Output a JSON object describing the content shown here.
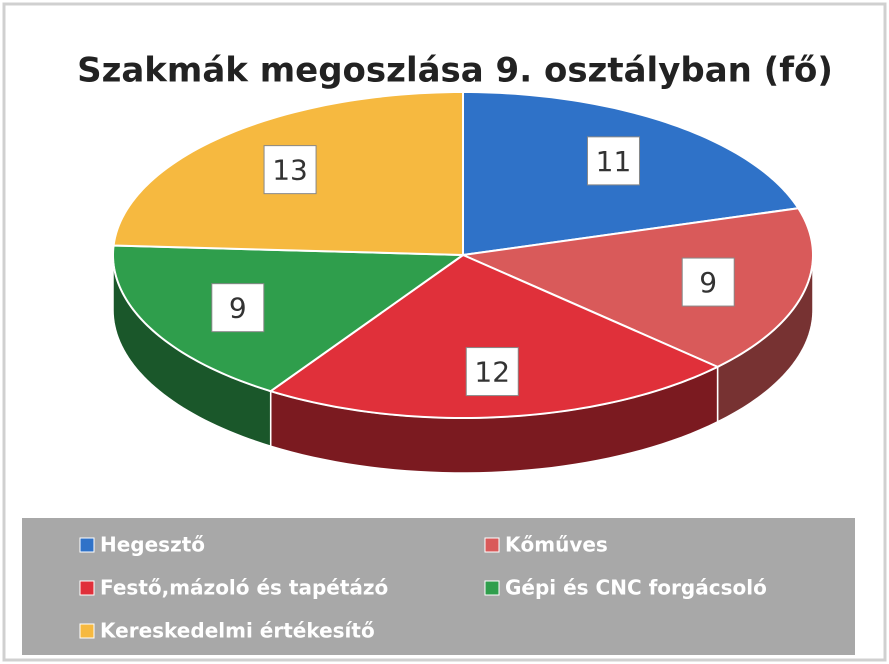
{
  "chart_data": {
    "type": "pie",
    "title": "Szakmák megoszlása 9. osztályban (fő)",
    "categories": [
      "Hegesztő",
      "Kőműves",
      "Festő,mázoló és tapétázó",
      "Gépi és CNC forgácsoló",
      "Kereskedelmi értékesítő"
    ],
    "values": [
      11,
      9,
      12,
      9,
      13
    ],
    "colors": [
      "#2f72c8",
      "#d95a5a",
      "#e0303a",
      "#2f9e4c",
      "#f6b940"
    ]
  }
}
